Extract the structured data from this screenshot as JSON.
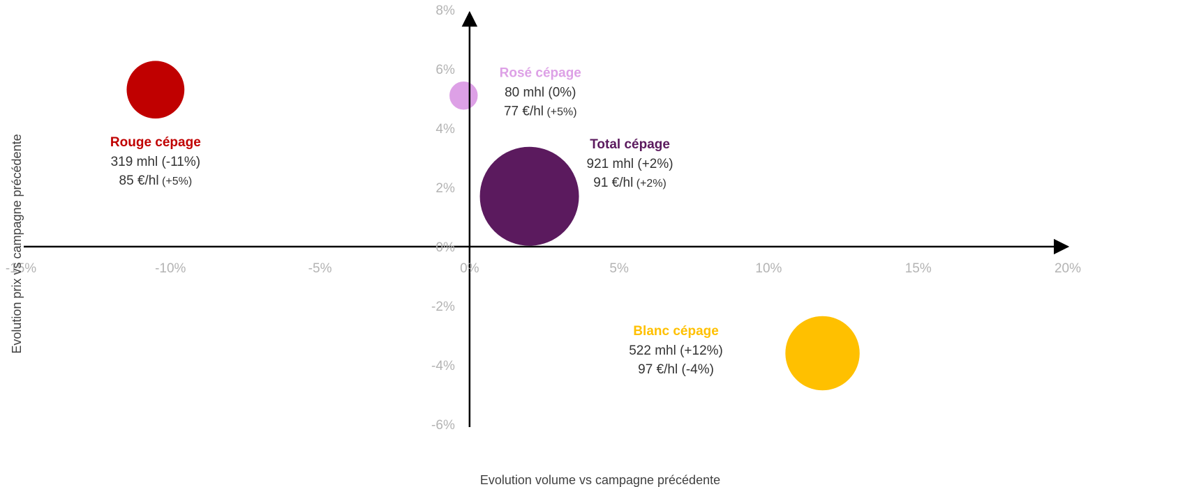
{
  "chart_data": {
    "type": "bubble",
    "xlabel": "Evolution volume vs campagne précédente",
    "ylabel": "Evolution prix vs campagne précédente",
    "xlim": [
      -15,
      20
    ],
    "ylim": [
      -6,
      8
    ],
    "x_ticks": [
      {
        "value": -15,
        "label": "-15%"
      },
      {
        "value": -10,
        "label": "-10%"
      },
      {
        "value": -5,
        "label": "-5%"
      },
      {
        "value": 0,
        "label": "0%"
      },
      {
        "value": 5,
        "label": "5%"
      },
      {
        "value": 10,
        "label": "10%"
      },
      {
        "value": 15,
        "label": "15%"
      },
      {
        "value": 20,
        "label": "20%"
      }
    ],
    "y_ticks": [
      {
        "value": 8,
        "label": "8%"
      },
      {
        "value": 6,
        "label": "6%"
      },
      {
        "value": 4,
        "label": "4%"
      },
      {
        "value": 2,
        "label": "2%"
      },
      {
        "value": 0,
        "label": "0%"
      },
      {
        "value": -2,
        "label": "-2%"
      },
      {
        "value": -4,
        "label": "-4%"
      },
      {
        "value": -6,
        "label": "-6%"
      }
    ],
    "grid": false,
    "series": [
      {
        "name": "Rouge cépage",
        "x": -10.5,
        "y": 5.3,
        "size": 319,
        "color": "#C00000",
        "label": {
          "title": "Rouge cépage",
          "line1": "319 mhl (-11%)",
          "line2": "85 €/hl",
          "line2_extra": "(+5%)"
        }
      },
      {
        "name": "Rosé cépage",
        "x": -0.2,
        "y": 5.1,
        "size": 80,
        "color": "#DDA0E6",
        "label": {
          "title": "Rosé cépage",
          "line1": "80 mhl (0%)",
          "line2": "77 €/hl",
          "line2_extra": "(+5%)"
        }
      },
      {
        "name": "Total cépage",
        "x": 2.0,
        "y": 1.7,
        "size": 921,
        "color": "#5B1A5E",
        "label": {
          "title": "Total cépage",
          "line1": "921 mhl (+2%)",
          "line2": "91 €/hl",
          "line2_extra": "(+2%)"
        }
      },
      {
        "name": "Blanc cépage",
        "x": 11.8,
        "y": -3.6,
        "size": 522,
        "color": "#FFC000",
        "label": {
          "title": "Blanc cépage",
          "line1": "522 mhl (+12%)",
          "line2": "97 €/hl (-4%)",
          "line2_extra": ""
        }
      }
    ]
  }
}
